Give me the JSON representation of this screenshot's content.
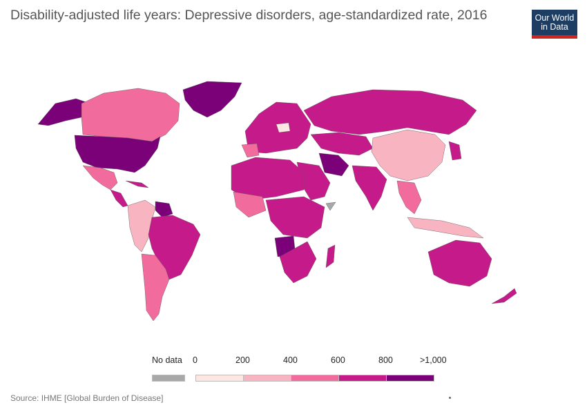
{
  "header": {
    "title": "Disability-adjusted life years: Depressive disorders, age-standardized rate, 2016",
    "logo_text": "Our World in Data"
  },
  "legend": {
    "no_data_label": "No data",
    "no_data_color": "#a8a8a8",
    "ticks": [
      "0",
      "200",
      "400",
      "600",
      "800",
      ">1,000"
    ],
    "bins": [
      {
        "from": 0,
        "to": 200,
        "color": "#fde7e3"
      },
      {
        "from": 200,
        "to": 400,
        "color": "#f8b4c0"
      },
      {
        "from": 400,
        "to": 600,
        "color": "#f16b9d"
      },
      {
        "from": 600,
        "to": 800,
        "color": "#c51b8a"
      },
      {
        "from": 800,
        "to": 1000,
        "color": "#7a0177"
      }
    ]
  },
  "footer": {
    "source": "Source: IHME [Global Burden of Disease]"
  }
}
